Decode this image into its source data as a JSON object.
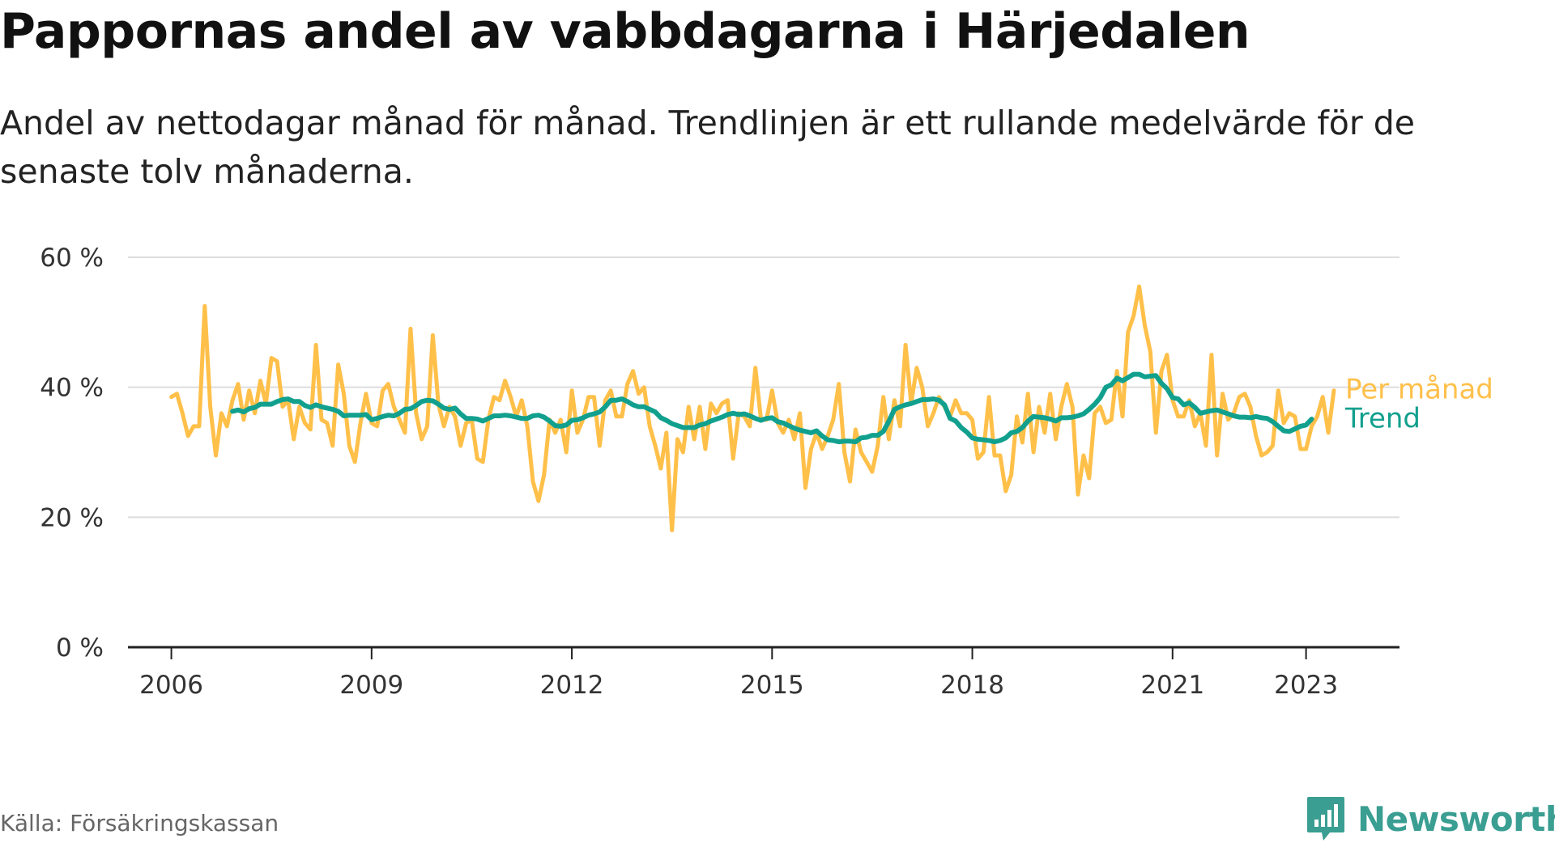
{
  "title": "Pappornas andel av vabbdagarna i Härjedalen",
  "subtitle": "Andel av nettodagar månad för månad. Trendlinjen är ett rullande medelvärde för de senaste tolv månaderna.",
  "source": "Källa: Försäkringskassan",
  "brand": "Newsworthy",
  "colors": {
    "monthly": "#ffc04a",
    "trend": "#12a08e",
    "grid": "#dddddd",
    "axis": "#222222",
    "label": "#333333",
    "brand": "#3a9e92"
  },
  "chart_data": {
    "type": "line",
    "ylim": [
      0,
      60
    ],
    "y_ticks": [
      0,
      20,
      40,
      60
    ],
    "y_tick_labels": [
      "0 %",
      "20 %",
      "40 %",
      "60 %"
    ],
    "xlim": [
      2005.35,
      2024.4
    ],
    "x_ticks": [
      2006,
      2009,
      2012,
      2015,
      2018,
      2021,
      2023
    ],
    "x_tick_labels": [
      "2006",
      "2009",
      "2012",
      "2015",
      "2018",
      "2021",
      "2023"
    ],
    "grid": true,
    "legend_position": "line-end labels",
    "series": [
      {
        "name": "Per månad",
        "x_start": 2006.0,
        "x_step": 0.0833333,
        "values": [
          38.5,
          39,
          36,
          32.5,
          34,
          34,
          52.5,
          37,
          29.5,
          36,
          34,
          38,
          40.5,
          35,
          39.5,
          36,
          41,
          37.5,
          44.5,
          44,
          37,
          38,
          32,
          37,
          34.5,
          33.5,
          46.5,
          35,
          34.5,
          31,
          43.5,
          39,
          31,
          28.5,
          34.5,
          39,
          34.5,
          34,
          39.5,
          40.5,
          37,
          35,
          33,
          49,
          36,
          32,
          34,
          48,
          37.5,
          34,
          37,
          35.5,
          31,
          34.5,
          35,
          29,
          28.5,
          35,
          38.5,
          38,
          41,
          38.5,
          35.5,
          38,
          34,
          25.5,
          22.5,
          26.5,
          35,
          33,
          35,
          30,
          39.5,
          33,
          35,
          38.5,
          38.5,
          31,
          38,
          39.5,
          35.5,
          35.5,
          40.5,
          42.5,
          39,
          40,
          34,
          31,
          27.5,
          33,
          18,
          32,
          30,
          37,
          32,
          37,
          30.5,
          37.5,
          36,
          37.5,
          38,
          29,
          36,
          35.5,
          34,
          43,
          35,
          35,
          39.5,
          34.5,
          33,
          35,
          32,
          36,
          24.5,
          30.5,
          33,
          30.5,
          32.5,
          35,
          40.5,
          30,
          25.5,
          33.5,
          30,
          28.5,
          27,
          31,
          38.5,
          32,
          38,
          34,
          46.5,
          37.5,
          43,
          40,
          34,
          36,
          38.5,
          37,
          35.5,
          38,
          36,
          36,
          35,
          29,
          30,
          38.5,
          29.5,
          29.5,
          24,
          26.5,
          35.5,
          31.5,
          39,
          30,
          37,
          33,
          39,
          32,
          37,
          40.5,
          37,
          23.5,
          29.5,
          26,
          36,
          37,
          34.5,
          35,
          42.5,
          35.5,
          48.5,
          51,
          55.5,
          49.5,
          45.5,
          33,
          42.5,
          45,
          38,
          35.5,
          35.5,
          38,
          34,
          36,
          31,
          45,
          29.5,
          39,
          35,
          36,
          38.5,
          39,
          37,
          32.5,
          29.5,
          30,
          31,
          39.5,
          34.5,
          36,
          35.5,
          30.5,
          30.5,
          34,
          35.5,
          38.5,
          33,
          39.5
        ]
      },
      {
        "name": "Trend",
        "x_start": 2006.917,
        "x_step": 0.0833333,
        "values": [
          36.3,
          36.5,
          36.2,
          36.7,
          36.9,
          37.4,
          37.4,
          37.4,
          37.8,
          38.1,
          38.2,
          37.8,
          37.8,
          37.2,
          36.9,
          37.3,
          37,
          36.8,
          36.6,
          36.3,
          35.6,
          35.7,
          35.7,
          35.7,
          35.8,
          35,
          35.2,
          35.5,
          35.7,
          35.6,
          36,
          36.6,
          36.7,
          37.2,
          37.8,
          38,
          37.9,
          37.4,
          36.8,
          36.6,
          36.8,
          35.9,
          35.2,
          35.2,
          35.1,
          34.8,
          35.2,
          35.6,
          35.6,
          35.7,
          35.6,
          35.4,
          35.2,
          35.2,
          35.6,
          35.7,
          35.4,
          34.8,
          34.1,
          34,
          34.2,
          34.9,
          35,
          35.3,
          35.7,
          35.9,
          36.2,
          37,
          38,
          38,
          38.2,
          37.8,
          37.3,
          37,
          37,
          36.6,
          36.2,
          35.3,
          34.9,
          34.4,
          34.1,
          33.8,
          33.8,
          33.8,
          34.2,
          34.4,
          34.8,
          35.1,
          35.4,
          35.8,
          36,
          35.8,
          35.9,
          35.6,
          35.2,
          34.9,
          35.2,
          35.3,
          34.7,
          34.5,
          34.1,
          33.7,
          33.4,
          33.2,
          33,
          33.3,
          32.5,
          31.9,
          31.8,
          31.6,
          31.7,
          31.7,
          31.6,
          32.2,
          32.3,
          32.6,
          32.6,
          33.2,
          34.8,
          36.6,
          37,
          37.3,
          37.5,
          37.8,
          38.1,
          38.1,
          38.2,
          38,
          37.3,
          35.2,
          34.8,
          33.8,
          33.1,
          32.2,
          32,
          31.9,
          31.8,
          31.6,
          31.8,
          32.2,
          33,
          33.2,
          33.8,
          34.8,
          35.5,
          35.4,
          35.3,
          35.1,
          34.8,
          35.3,
          35.3,
          35.4,
          35.6,
          35.9,
          36.6,
          37.4,
          38.4,
          40,
          40.4,
          41.4,
          41,
          41.5,
          42,
          42,
          41.6,
          41.7,
          41.8,
          40.6,
          39.8,
          38.4,
          38.2,
          37.3,
          37.6,
          36.9,
          36,
          36.2,
          36.4,
          36.5,
          36.2,
          35.9,
          35.6,
          35.4,
          35.4,
          35.3,
          35.5,
          35.3,
          35.2,
          34.7,
          34,
          33.3,
          33.2,
          33.6,
          34,
          34.2,
          35.1
        ]
      }
    ]
  }
}
